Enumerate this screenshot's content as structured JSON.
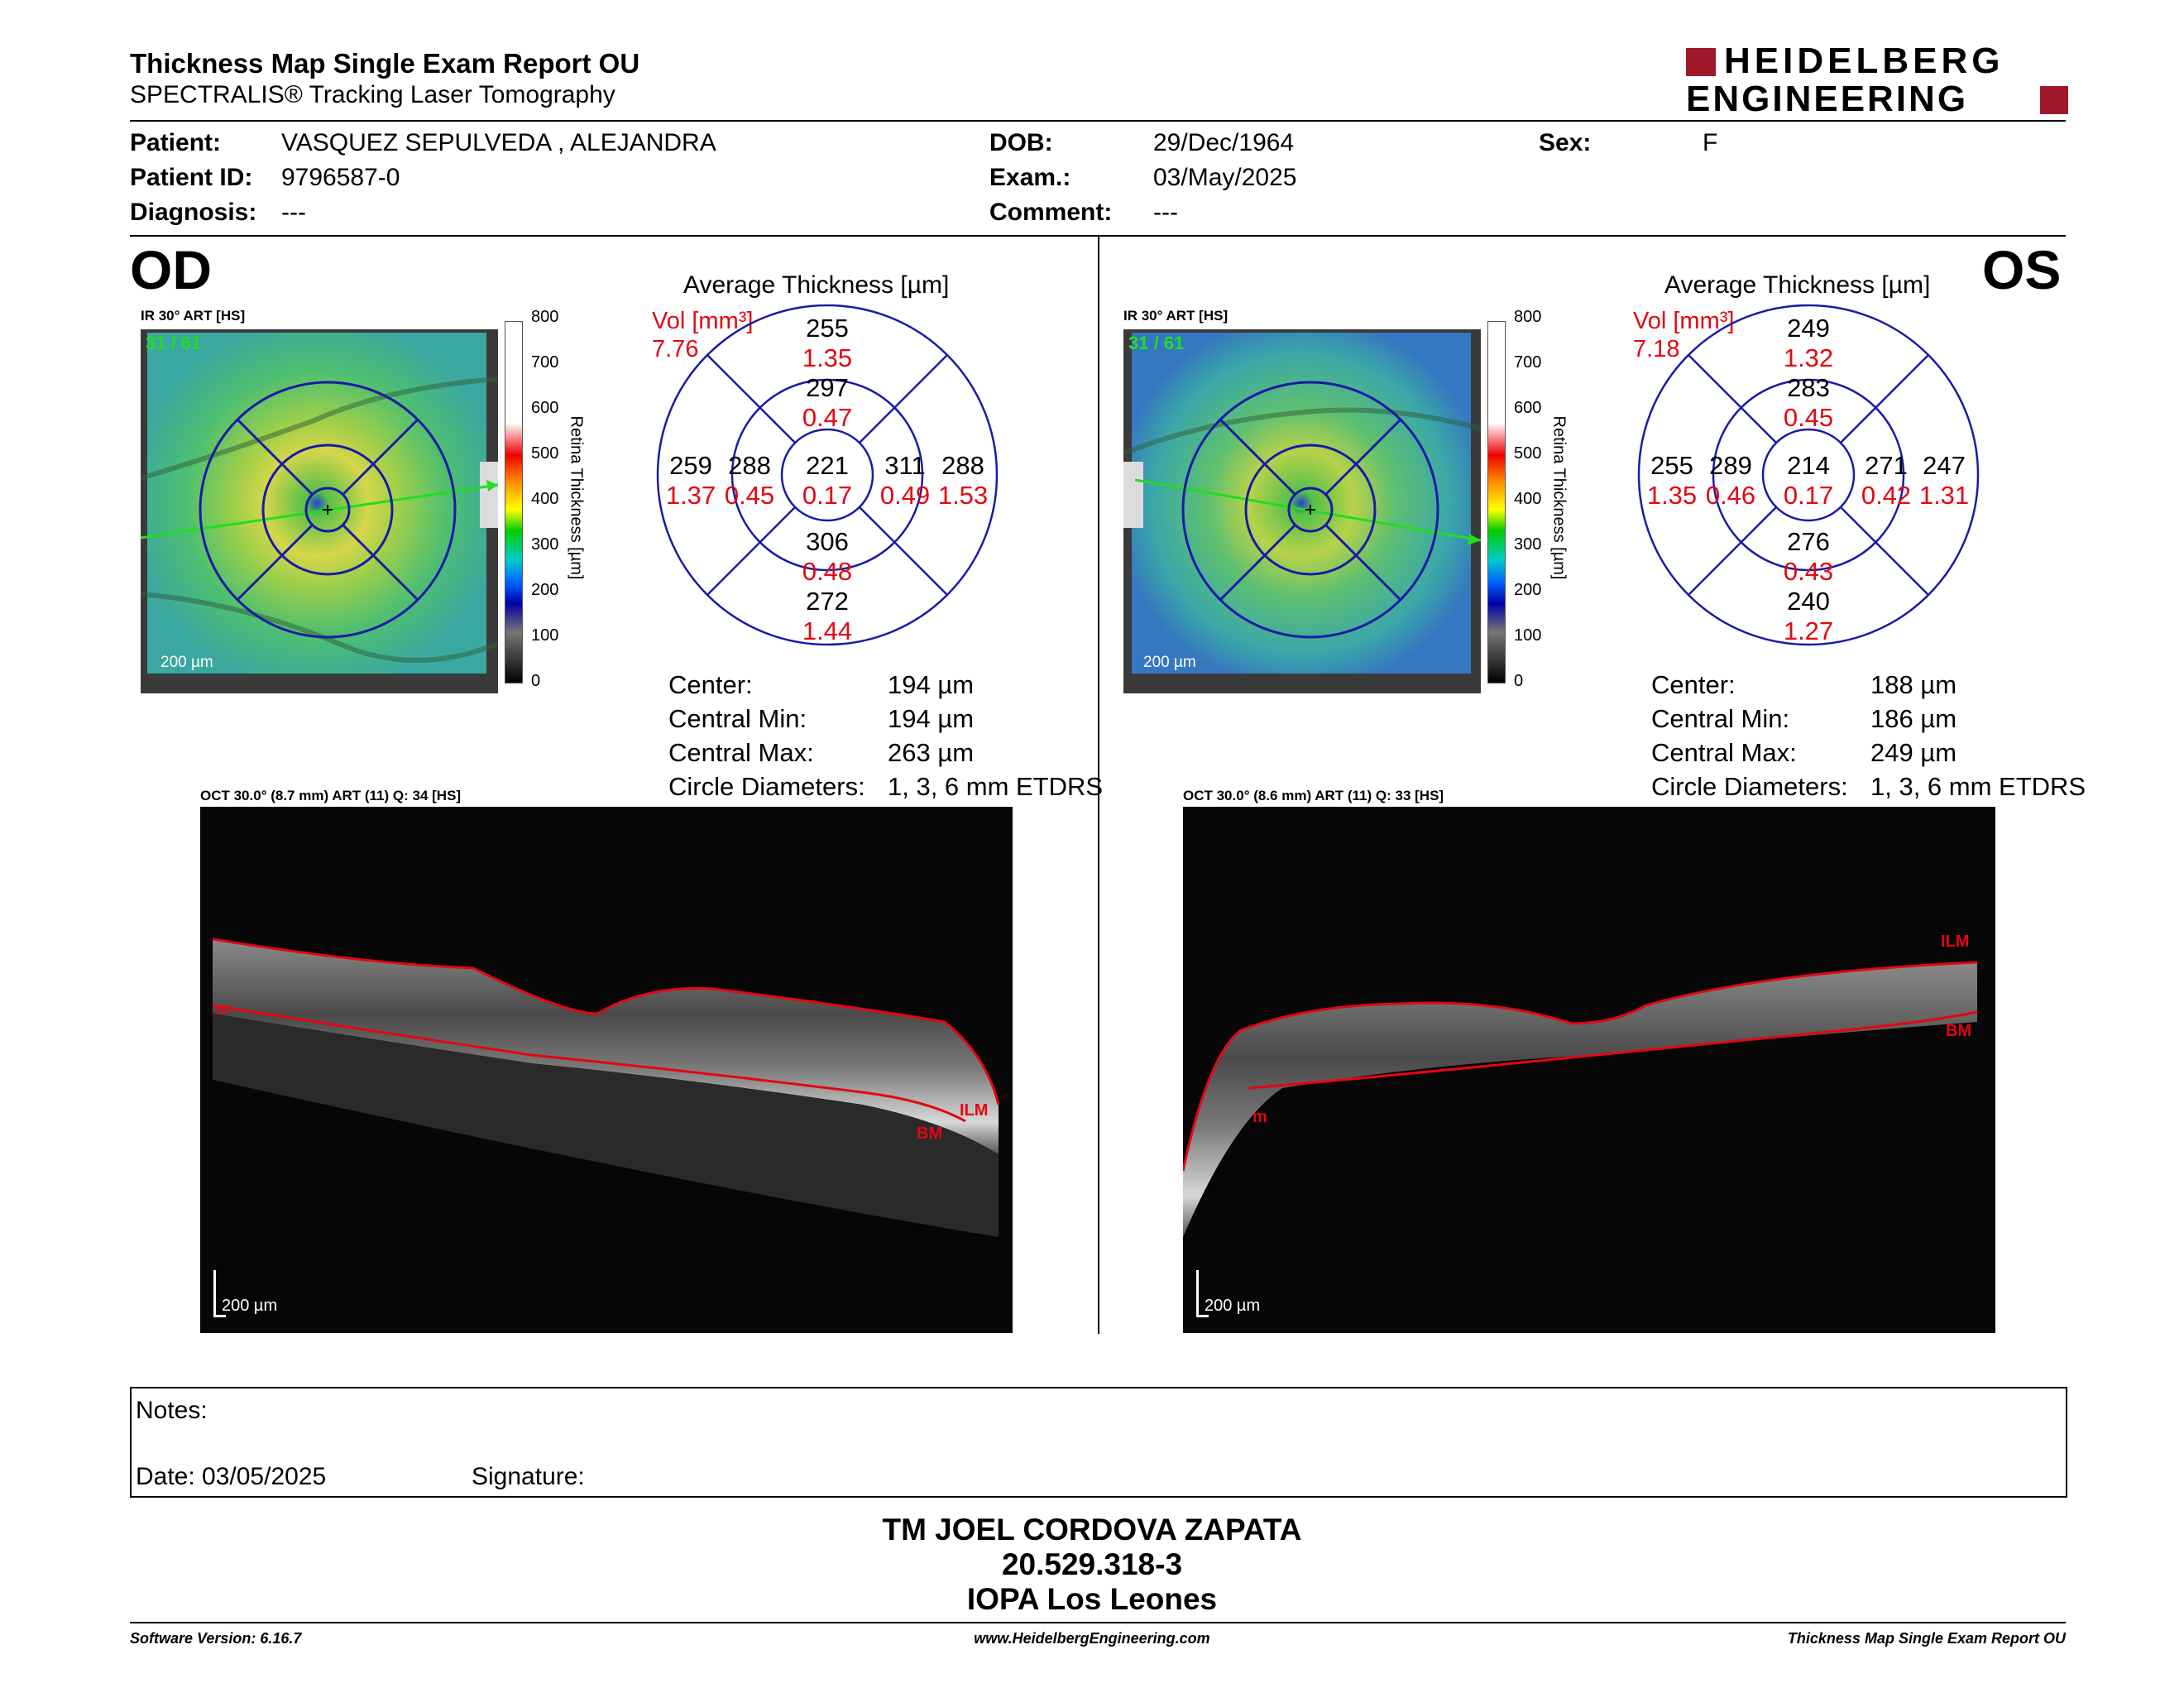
{
  "header": {
    "title": "Thickness Map Single Exam Report OU",
    "subtitle": "SPECTRALIS® Tracking Laser Tomography",
    "logo_line1": "HEIDELBERG",
    "logo_line2": "ENGINEERING"
  },
  "patient": {
    "patient_label": "Patient:",
    "patient_value": "VASQUEZ SEPULVEDA , ALEJANDRA",
    "id_label": "Patient ID:",
    "id_value": "9796587-0",
    "diag_label": "Diagnosis:",
    "diag_value": "---",
    "dob_label": "DOB:",
    "dob_value": "29/Dec/1964",
    "exam_label": "Exam.:",
    "exam_value": "03/May/2025",
    "comment_label": "Comment:",
    "comment_value": "---",
    "sex_label": "Sex:",
    "sex_value": "F"
  },
  "od": {
    "eye": "OD",
    "ir_label": "IR 30° ART [HS]",
    "frame_count": "31 / 61",
    "scale": "200 µm",
    "oct_label": "OCT 30.0° (8.7 mm) ART (11) Q: 34 [HS]",
    "oct_scale": "200 µm",
    "layer_ilm": "ILM",
    "layer_bm": "BM",
    "layer_m": "m",
    "avg_title": "Average Thickness [µm]",
    "vol_label": "Vol [mm³]",
    "vol_total": "7.76",
    "grid": {
      "outer_top": "255",
      "outer_top_v": "1.35",
      "inner_top": "297",
      "inner_top_v": "0.47",
      "outer_left": "259",
      "outer_left_v": "1.37",
      "inner_left": "288",
      "inner_left_v": "0.45",
      "center": "221",
      "center_v": "0.17",
      "inner_right": "311",
      "inner_right_v": "0.49",
      "outer_right": "288",
      "outer_right_v": "1.53",
      "inner_bottom": "306",
      "inner_bottom_v": "0.48",
      "outer_bottom": "272",
      "outer_bottom_v": "1.44"
    },
    "stats": {
      "center_label": "Center:",
      "center_value": "194 µm",
      "min_label": "Central Min:",
      "min_value": "194 µm",
      "max_label": "Central Max:",
      "max_value": "263 µm",
      "circ_label": "Circle Diameters:",
      "circ_value": "1, 3, 6 mm ETDRS"
    }
  },
  "os": {
    "eye": "OS",
    "ir_label": "IR 30° ART [HS]",
    "frame_count": "31 / 61",
    "scale": "200 µm",
    "oct_label": "OCT 30.0° (8.6 mm) ART (11) Q: 33 [HS]",
    "oct_scale": "200 µm",
    "layer_ilm": "ILM",
    "layer_bm": "BM",
    "layer_m": "m",
    "avg_title": "Average Thickness [µm]",
    "vol_label": "Vol [mm³]",
    "vol_total": "7.18",
    "grid": {
      "outer_top": "249",
      "outer_top_v": "1.32",
      "inner_top": "283",
      "inner_top_v": "0.45",
      "outer_left": "255",
      "outer_left_v": "1.35",
      "inner_left": "289",
      "inner_left_v": "0.46",
      "center": "214",
      "center_v": "0.17",
      "inner_right": "271",
      "inner_right_v": "0.42",
      "outer_right": "247",
      "outer_right_v": "1.31",
      "inner_bottom": "276",
      "inner_bottom_v": "0.43",
      "outer_bottom": "240",
      "outer_bottom_v": "1.27"
    },
    "stats": {
      "center_label": "Center:",
      "center_value": "188 µm",
      "min_label": "Central Min:",
      "min_value": "186 µm",
      "max_label": "Central Max:",
      "max_value": "249 µm",
      "circ_label": "Circle Diameters:",
      "circ_value": "1, 3, 6 mm ETDRS"
    }
  },
  "colorbar": {
    "ticks": [
      "800",
      "700",
      "600",
      "500",
      "400",
      "300",
      "200",
      "100",
      "0"
    ],
    "label": "Retina Thickness [µm]"
  },
  "notes": {
    "notes_label": "Notes:",
    "date_label": "Date: 03/05/2025",
    "signature_label": "Signature:"
  },
  "stamp": {
    "line1": "TM JOEL CORDOVA ZAPATA",
    "line2": "20.529.318-3",
    "line3": "IOPA Los Leones"
  },
  "footer": {
    "software": "Software Version: 6.16.7",
    "website": "www.HeidelbergEngineering.com",
    "report": "Thickness Map Single Exam Report OU"
  },
  "colors": {
    "red": "#e30613",
    "logo_red": "#a0192a",
    "grid_blue": "#1a1aa6"
  }
}
